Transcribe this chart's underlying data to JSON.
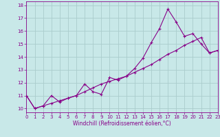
{
  "xlabel": "Windchill (Refroidissement éolien,°C)",
  "bg_color": "#c8e8e8",
  "line_color": "#880088",
  "grid_color": "#aacccc",
  "x_data": [
    0,
    1,
    2,
    3,
    4,
    5,
    6,
    7,
    8,
    9,
    10,
    11,
    12,
    13,
    14,
    15,
    16,
    17,
    18,
    19,
    20,
    21,
    22,
    23
  ],
  "y_line1": [
    11.0,
    10.0,
    10.2,
    11.0,
    10.5,
    10.8,
    11.0,
    11.9,
    11.3,
    11.1,
    12.4,
    12.2,
    12.5,
    13.1,
    13.9,
    15.1,
    16.2,
    17.7,
    16.7,
    15.6,
    15.8,
    15.0,
    14.3,
    14.5
  ],
  "y_line2": [
    11.0,
    10.0,
    10.2,
    10.4,
    10.6,
    10.8,
    11.0,
    11.3,
    11.6,
    11.9,
    12.1,
    12.3,
    12.5,
    12.8,
    13.1,
    13.4,
    13.8,
    14.2,
    14.5,
    14.9,
    15.2,
    15.5,
    14.3,
    14.5
  ],
  "xlim": [
    0,
    23
  ],
  "ylim": [
    9.7,
    18.3
  ],
  "yticks": [
    10,
    11,
    12,
    13,
    14,
    15,
    16,
    17,
    18
  ],
  "xticks": [
    0,
    1,
    2,
    3,
    4,
    5,
    6,
    7,
    8,
    9,
    10,
    11,
    12,
    13,
    14,
    15,
    16,
    17,
    18,
    19,
    20,
    21,
    22,
    23
  ],
  "tick_fontsize": 5.0,
  "xlabel_fontsize": 5.5
}
